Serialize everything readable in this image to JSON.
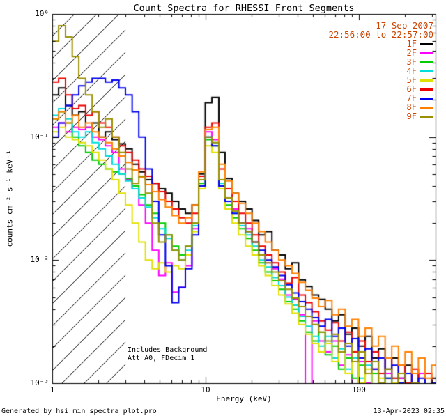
{
  "annotations": {
    "date": "17-Sep-2007",
    "time_range": "22:56:00 to 22:57:00",
    "includes_background": "Includes Background",
    "attenuator": "Att A0, FDecim 1",
    "generated_by": "Generated by hsi_min_spectra_plot.pro",
    "generated_on": "13-Apr-2023 02:35",
    "accent_color": "#cc4400"
  },
  "chart_data": {
    "type": "line",
    "title": "Count Spectra for RHESSI Front Segments",
    "xlabel": "Energy (keV)",
    "ylabel": "counts cm⁻² s⁻¹ keV⁻¹",
    "x_scale": "log",
    "y_scale": "log",
    "xlim": [
      1,
      316.23
    ],
    "ylim": [
      0.001,
      1
    ],
    "grid": false,
    "legend_position": "upper-right",
    "line_style": "histogram-steps",
    "hatch_region": {
      "xmin": 1,
      "xmax": 3,
      "style": "diagonal-hatch"
    },
    "x_ticks": [
      {
        "value": 1,
        "label": "1"
      },
      {
        "value": 10,
        "label": "10"
      },
      {
        "value": 100,
        "label": "100"
      }
    ],
    "y_ticks": [
      {
        "value": 1,
        "label": "10⁰"
      },
      {
        "value": 0.1,
        "label": "10⁻¹"
      },
      {
        "value": 0.01,
        "label": "10⁻²"
      },
      {
        "value": 0.001,
        "label": "10⁻³"
      }
    ],
    "energies_keV": [
      1.0,
      1.1,
      1.22,
      1.35,
      1.49,
      1.65,
      1.82,
      2.01,
      2.22,
      2.46,
      2.72,
      3.0,
      3.32,
      3.67,
      4.05,
      4.48,
      4.95,
      5.47,
      6.04,
      6.68,
      7.38,
      8.15,
      9.01,
      9.95,
      11.0,
      12.2,
      13.4,
      14.9,
      16.4,
      18.2,
      20.1,
      22.2,
      24.5,
      27.1,
      30.0,
      33.1,
      36.6,
      40.4,
      44.7,
      49.4,
      54.6,
      60.3,
      66.7,
      73.7,
      81.4,
      90.0,
      99.4,
      109.9,
      121.4,
      134.2,
      148.3,
      163.9,
      181.1,
      200.1,
      221.2,
      244.4,
      270.1,
      298.5
    ],
    "series": [
      {
        "name": "1F",
        "color": "#000000",
        "values": [
          0.22,
          0.25,
          0.18,
          0.15,
          0.16,
          0.12,
          0.13,
          0.1,
          0.11,
          0.095,
          0.088,
          0.08,
          0.06,
          0.052,
          0.045,
          0.042,
          0.038,
          0.035,
          0.03,
          0.026,
          0.024,
          0.028,
          0.05,
          0.19,
          0.21,
          0.075,
          0.046,
          0.035,
          0.03,
          0.026,
          0.021,
          0.016,
          0.017,
          0.012,
          0.011,
          0.0085,
          0.0095,
          0.0069,
          0.0061,
          0.0052,
          0.0048,
          0.004,
          0.0032,
          0.0036,
          0.0025,
          0.0028,
          0.002,
          0.0024,
          0.0016,
          0.0019,
          0.0013,
          0.0016,
          0.0011,
          0.0014,
          0.001,
          0.0012,
          0.0009,
          0.0011
        ]
      },
      {
        "name": "2F",
        "color": "#ff00ff",
        "values": [
          0.12,
          0.13,
          0.11,
          0.12,
          0.115,
          0.12,
          0.1,
          0.095,
          0.085,
          0.075,
          0.055,
          0.045,
          0.038,
          0.028,
          0.02,
          0.012,
          0.0075,
          0.0095,
          0.0055,
          0.006,
          0.009,
          0.018,
          0.045,
          0.11,
          0.095,
          0.045,
          0.032,
          0.026,
          0.02,
          0.018,
          0.014,
          0.011,
          0.0095,
          0.0085,
          0.007,
          0.0052,
          0.0048,
          0.0036,
          0.0009,
          0.0032,
          0.0022,
          0.0018,
          0.0022,
          0.0014,
          0.0017,
          0.0008,
          0.0015,
          0.001,
          0.0013,
          0.0009,
          0.0012,
          0.0008,
          0.0011,
          0.0007,
          0.001,
          0.0012,
          0.0008,
          0.001
        ]
      },
      {
        "name": "3F",
        "color": "#00cc00",
        "values": [
          0.14,
          0.16,
          0.13,
          0.1,
          0.085,
          0.075,
          0.065,
          0.06,
          0.055,
          0.052,
          0.05,
          0.046,
          0.04,
          0.034,
          0.028,
          0.024,
          0.02,
          0.016,
          0.013,
          0.011,
          0.013,
          0.02,
          0.042,
          0.095,
          0.085,
          0.04,
          0.028,
          0.022,
          0.018,
          0.015,
          0.012,
          0.0095,
          0.008,
          0.0068,
          0.0058,
          0.0046,
          0.004,
          0.0032,
          0.0026,
          0.0022,
          0.0026,
          0.0017,
          0.002,
          0.0013,
          0.0016,
          0.0011,
          0.0014,
          0.0009,
          0.0012,
          0.0006,
          0.0011,
          0.0007,
          0.001,
          0.0007,
          0.0009,
          0.0005,
          0.0008,
          0.0007
        ]
      },
      {
        "name": "4F",
        "color": "#00dddd",
        "values": [
          0.15,
          0.17,
          0.14,
          0.11,
          0.1,
          0.11,
          0.09,
          0.08,
          0.07,
          0.06,
          0.05,
          0.044,
          0.038,
          0.032,
          0.027,
          0.022,
          0.018,
          0.015,
          0.012,
          0.01,
          0.012,
          0.019,
          0.04,
          0.1,
          0.09,
          0.042,
          0.03,
          0.024,
          0.019,
          0.016,
          0.013,
          0.01,
          0.0088,
          0.0072,
          0.0062,
          0.005,
          0.0043,
          0.0035,
          0.0029,
          0.0024,
          0.002,
          0.0024,
          0.0016,
          0.0019,
          0.0013,
          0.0016,
          0.0011,
          0.0014,
          0.0009,
          0.0012,
          0.0008,
          0.0011,
          0.0007,
          0.001,
          0.0007,
          0.0009,
          0.0006,
          0.0008
        ]
      },
      {
        "name": "5F",
        "color": "#e0e000",
        "values": [
          0.11,
          0.12,
          0.1,
          0.095,
          0.09,
          0.085,
          0.075,
          0.065,
          0.055,
          0.045,
          0.035,
          0.028,
          0.02,
          0.014,
          0.01,
          0.0085,
          0.0095,
          0.008,
          0.009,
          0.0085,
          0.011,
          0.017,
          0.038,
          0.085,
          0.075,
          0.038,
          0.026,
          0.02,
          0.016,
          0.013,
          0.011,
          0.009,
          0.0075,
          0.0062,
          0.0052,
          0.0044,
          0.0037,
          0.003,
          0.0025,
          0.0021,
          0.0018,
          0.0021,
          0.0015,
          0.0018,
          0.0012,
          0.0015,
          0.001,
          0.0013,
          0.0009,
          0.0011,
          0.0008,
          0.001,
          0.0007,
          0.0009,
          0.0006,
          0.0008,
          0.0006,
          0.0007
        ]
      },
      {
        "name": "6F",
        "color": "#ee0000",
        "values": [
          0.28,
          0.3,
          0.22,
          0.17,
          0.18,
          0.15,
          0.16,
          0.13,
          0.12,
          0.1,
          0.085,
          0.075,
          0.065,
          0.055,
          0.048,
          0.042,
          0.036,
          0.03,
          0.026,
          0.022,
          0.02,
          0.024,
          0.048,
          0.12,
          0.13,
          0.055,
          0.038,
          0.03,
          0.024,
          0.02,
          0.016,
          0.013,
          0.011,
          0.0095,
          0.008,
          0.0065,
          0.0072,
          0.0052,
          0.0045,
          0.0038,
          0.0032,
          0.0027,
          0.0031,
          0.0022,
          0.0026,
          0.0018,
          0.0022,
          0.0015,
          0.0018,
          0.0012,
          0.0016,
          0.0011,
          0.0014,
          0.001,
          0.0013,
          0.0009,
          0.0012,
          0.001
        ]
      },
      {
        "name": "7F",
        "color": "#0000ee",
        "values": [
          0.1,
          0.13,
          0.18,
          0.22,
          0.26,
          0.28,
          0.3,
          0.3,
          0.28,
          0.29,
          0.25,
          0.22,
          0.16,
          0.1,
          0.055,
          0.03,
          0.016,
          0.009,
          0.0045,
          0.006,
          0.0085,
          0.016,
          0.04,
          0.1,
          0.085,
          0.04,
          0.03,
          0.024,
          0.02,
          0.017,
          0.014,
          0.012,
          0.01,
          0.0088,
          0.0075,
          0.0063,
          0.0054,
          0.0046,
          0.004,
          0.0034,
          0.0029,
          0.0033,
          0.0024,
          0.0028,
          0.002,
          0.0023,
          0.0016,
          0.0019,
          0.0013,
          0.0016,
          0.0011,
          0.0014,
          0.001,
          0.0012,
          0.0009,
          0.0011,
          0.0007,
          0.001
        ]
      },
      {
        "name": "8F",
        "color": "#ff8000",
        "values": [
          0.14,
          0.16,
          0.13,
          0.15,
          0.12,
          0.13,
          0.11,
          0.1,
          0.09,
          0.08,
          0.07,
          0.062,
          0.054,
          0.047,
          0.041,
          0.036,
          0.031,
          0.027,
          0.023,
          0.02,
          0.022,
          0.028,
          0.052,
          0.115,
          0.12,
          0.06,
          0.044,
          0.035,
          0.029,
          0.024,
          0.02,
          0.017,
          0.014,
          0.012,
          0.01,
          0.009,
          0.0078,
          0.0066,
          0.0057,
          0.0049,
          0.0042,
          0.0047,
          0.0036,
          0.004,
          0.0029,
          0.0033,
          0.0024,
          0.0028,
          0.002,
          0.0024,
          0.0016,
          0.002,
          0.0014,
          0.0018,
          0.0012,
          0.0016,
          0.0011,
          0.0014
        ]
      },
      {
        "name": "9F",
        "color": "#9a9000",
        "values": [
          0.6,
          0.8,
          0.65,
          0.45,
          0.3,
          0.22,
          0.16,
          0.12,
          0.14,
          0.1,
          0.075,
          0.055,
          0.042,
          0.048,
          0.035,
          0.02,
          0.014,
          0.016,
          0.012,
          0.01,
          0.013,
          0.02,
          0.045,
          0.1,
          0.09,
          0.045,
          0.032,
          0.025,
          0.02,
          0.017,
          0.014,
          0.011,
          0.0095,
          0.008,
          0.0068,
          0.0058,
          0.0049,
          0.0042,
          0.0035,
          0.003,
          0.0026,
          0.0022,
          0.0025,
          0.0018,
          0.0021,
          0.0015,
          0.0018,
          0.0012,
          0.0015,
          0.001,
          0.0013,
          0.0009,
          0.0012,
          0.0008,
          0.001,
          0.0007,
          0.0009,
          0.0008
        ]
      }
    ]
  }
}
